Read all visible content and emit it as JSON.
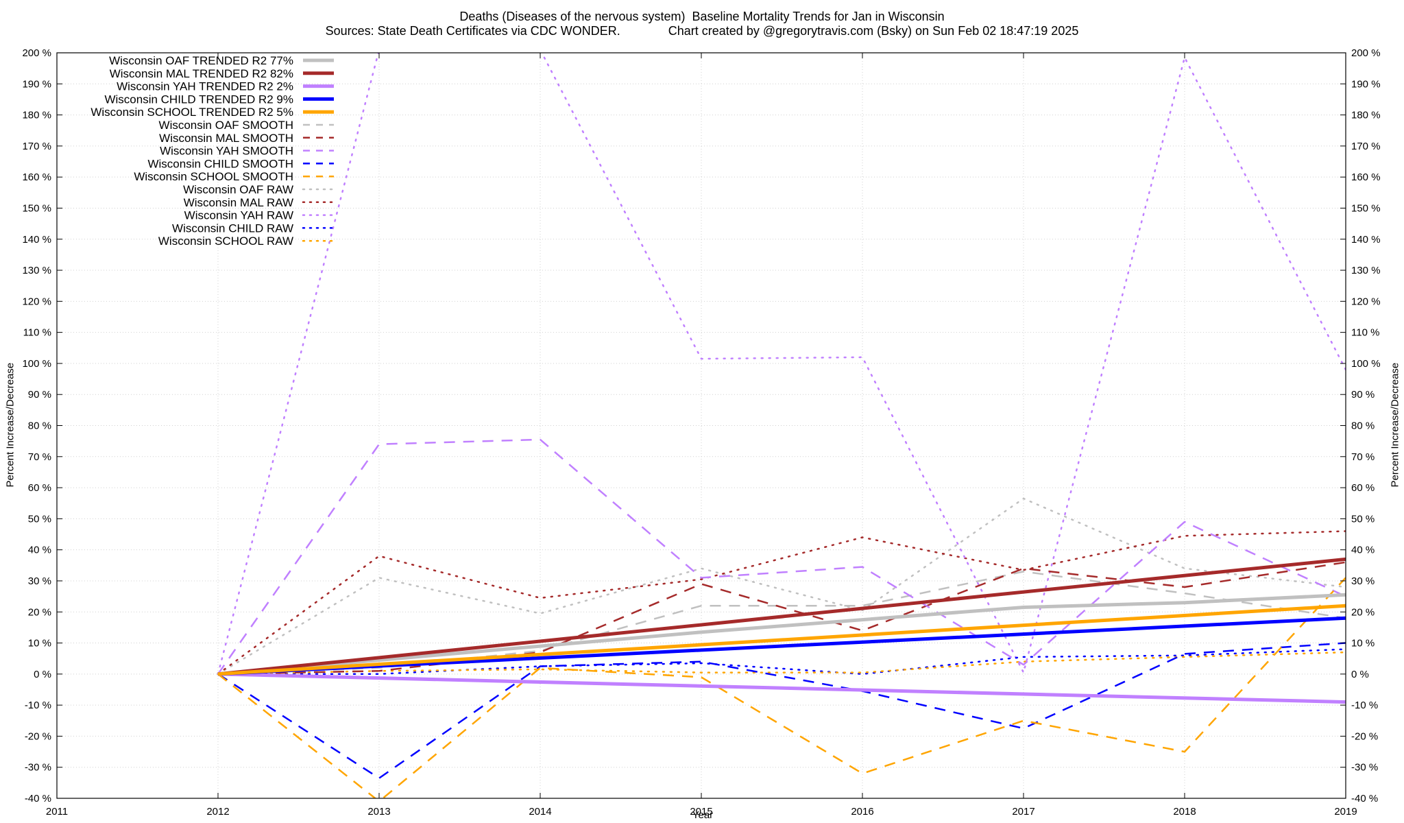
{
  "chart_data": {
    "type": "line",
    "title": "Deaths (Diseases of the nervous system)  Baseline Mortality Trends for Jan in Wisconsin",
    "subtitle": "Sources: State Death Certificates via CDC WONDER.              Chart created by @gregorytravis.com (Bsky) on Sun Feb 02 18:47:19 2025",
    "xlabel": "Year",
    "ylabel": "Percent Increase/Decrease",
    "y2label": "Percent Increase/Decrease",
    "xlim": [
      2011,
      2019
    ],
    "ylim": [
      -40,
      200
    ],
    "x_ticks": [
      "2011",
      "2012",
      "2013",
      "2014",
      "2015",
      "2016",
      "2017",
      "2018",
      "2019"
    ],
    "y_ticks": [
      "-40 %",
      "-30 %",
      "-20 %",
      "-10 %",
      "0 %",
      "10 %",
      "20 %",
      "30 %",
      "40 %",
      "50 %",
      "60 %",
      "70 %",
      "80 %",
      "90 %",
      "100 %",
      "110 %",
      "120 %",
      "130 %",
      "140 %",
      "150 %",
      "160 %",
      "170 %",
      "180 %",
      "190 %",
      "200 %"
    ],
    "grid": true,
    "legend_position": "top-left",
    "series": [
      {
        "name": "Wisconsin OAF TRENDED R2  77%",
        "color": "#c0c0c0",
        "style": "solid",
        "width": 5,
        "x": [
          2012,
          2013,
          2014,
          2015,
          2016,
          2017,
          2018,
          2019
        ],
        "y": [
          0,
          4.5,
          9,
          13.5,
          17.5,
          21.5,
          23,
          25.5
        ]
      },
      {
        "name": "Wisconsin MAL TRENDED R2  82%",
        "color": "#a52a2a",
        "style": "solid",
        "width": 5,
        "x": [
          2012,
          2019
        ],
        "y": [
          0,
          37
        ]
      },
      {
        "name": "Wisconsin YAH TRENDED R2    2%",
        "color": "#c080ff",
        "style": "solid",
        "width": 5,
        "x": [
          2012,
          2019
        ],
        "y": [
          0,
          -9
        ]
      },
      {
        "name": "Wisconsin CHILD TRENDED R2    9%",
        "color": "#0000ff",
        "style": "solid",
        "width": 5,
        "x": [
          2012,
          2019
        ],
        "y": [
          0,
          18
        ]
      },
      {
        "name": "Wisconsin SCHOOL TRENDED R2    5%",
        "color": "#ffa500",
        "style": "solid",
        "width": 5,
        "x": [
          2012,
          2019
        ],
        "y": [
          0,
          22
        ]
      },
      {
        "name": "Wisconsin OAF SMOOTH",
        "color": "#c0c0c0",
        "style": "dashed",
        "width": 2.5,
        "x": [
          2012,
          2013,
          2014,
          2015,
          2016,
          2017,
          2018,
          2019
        ],
        "y": [
          0,
          2,
          7.5,
          22,
          22,
          33,
          26,
          18
        ]
      },
      {
        "name": "Wisconsin MAL SMOOTH",
        "color": "#a52a2a",
        "style": "dashed",
        "width": 2.5,
        "x": [
          2012,
          2013,
          2014,
          2015,
          2016,
          2017,
          2018,
          2019
        ],
        "y": [
          0,
          1,
          7,
          29,
          14,
          34,
          28,
          36
        ]
      },
      {
        "name": "Wisconsin YAH SMOOTH",
        "color": "#c080ff",
        "style": "dashed",
        "width": 2.5,
        "x": [
          2012,
          2013,
          2014,
          2015,
          2016,
          2017,
          2018,
          2019
        ],
        "y": [
          0,
          74,
          75.5,
          31,
          34.5,
          3,
          49,
          25
        ]
      },
      {
        "name": "Wisconsin CHILD SMOOTH",
        "color": "#0000ff",
        "style": "dashed",
        "width": 2.5,
        "x": [
          2012,
          2013,
          2014,
          2015,
          2016,
          2017,
          2018,
          2019
        ],
        "y": [
          0,
          -33.5,
          2.5,
          4,
          -5.5,
          -17.5,
          6.5,
          10
        ]
      },
      {
        "name": "Wisconsin SCHOOL SMOOTH",
        "color": "#ffa500",
        "style": "dashed",
        "width": 2.5,
        "x": [
          2012,
          2013,
          2014,
          2015,
          2016,
          2017,
          2018,
          2019
        ],
        "y": [
          0,
          -41,
          2,
          -1,
          -32,
          -15,
          -25,
          31
        ]
      },
      {
        "name": "Wisconsin OAF RAW",
        "color": "#c0c0c0",
        "style": "dotted",
        "width": 2.5,
        "x": [
          2012,
          2013,
          2014,
          2015,
          2016,
          2017,
          2018,
          2019
        ],
        "y": [
          0,
          31,
          19.5,
          34,
          20.5,
          56.5,
          34,
          28
        ]
      },
      {
        "name": "Wisconsin MAL RAW",
        "color": "#a52a2a",
        "style": "dotted",
        "width": 2.5,
        "x": [
          2012,
          2013,
          2014,
          2015,
          2016,
          2017,
          2018,
          2019
        ],
        "y": [
          0,
          38,
          24.5,
          30.5,
          44,
          33.5,
          44.5,
          46
        ]
      },
      {
        "name": "Wisconsin YAH RAW",
        "color": "#c080ff",
        "style": "dotted",
        "width": 2.5,
        "x": [
          2012,
          2013,
          2014,
          2015,
          2016,
          2017,
          2018,
          2019
        ],
        "y": [
          0,
          201,
          201,
          101.5,
          102,
          0.5,
          198.5,
          98
        ]
      },
      {
        "name": "Wisconsin CHILD RAW",
        "color": "#0000ff",
        "style": "dotted",
        "width": 2.5,
        "x": [
          2012,
          2013,
          2014,
          2015,
          2016,
          2017,
          2018,
          2019
        ],
        "y": [
          0,
          0,
          2.5,
          3.5,
          0,
          5.5,
          6,
          8
        ]
      },
      {
        "name": "Wisconsin SCHOOL RAW",
        "color": "#ffa500",
        "style": "dotted",
        "width": 2.5,
        "x": [
          2012,
          2013,
          2014,
          2015,
          2016,
          2017,
          2018,
          2019
        ],
        "y": [
          0,
          1,
          1.5,
          0.5,
          0.5,
          4,
          5.5,
          7
        ]
      }
    ]
  }
}
